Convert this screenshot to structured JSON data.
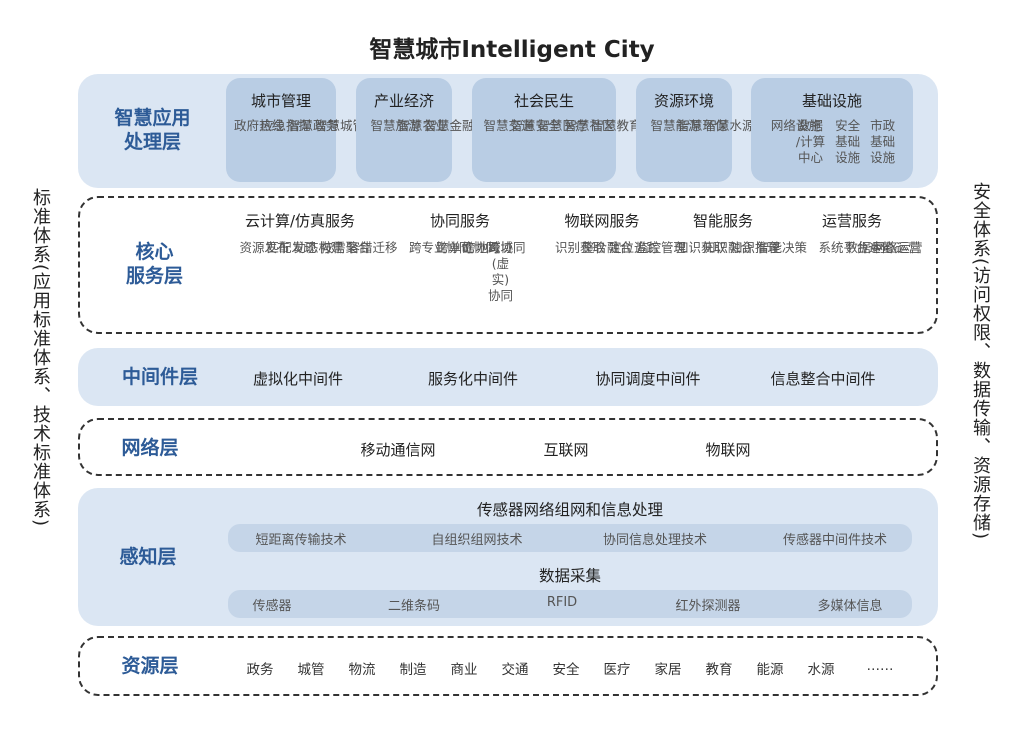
{
  "title": "智慧城市Intelligent City",
  "left_side": "标准体系(应用标准体系、技术标准体系)",
  "right_side": "安全体系(访问权限、数据传输、资源存储)",
  "app_layer": {
    "name": "智慧应用\n处理层",
    "boxes": [
      {
        "title": "城市管理",
        "cols": [
          "政府热线",
          "应急指挥",
          "智慧政务",
          "智慧城管"
        ]
      },
      {
        "title": "产业经济",
        "cols": [
          "智慧旅游",
          "智慧农业",
          "智慧金融"
        ]
      },
      {
        "title": "社会民生",
        "cols": [
          "智慧交通",
          "智慧安全",
          "智慧医疗",
          "智慧社区",
          "智慧教育"
        ]
      },
      {
        "title": "资源环境",
        "cols": [
          "智慧能源",
          "智慧环保",
          "智慧水源"
        ]
      },
      {
        "title": "基础设施",
        "cols": [
          "网络设施",
          "数据\n/计算\n中心",
          "安全\n基础\n设施",
          "市政\n基础\n设施"
        ]
      }
    ]
  },
  "core_layer": {
    "name": "核心\n服务层",
    "groups": [
      {
        "title": "云计算/仿真服务",
        "cols": [
          "资源发布",
          "匹配发现",
          "动态构建",
          "按需聚合",
          "容错迁移"
        ]
      },
      {
        "title": "协同服务",
        "cols": [
          "跨专业协同",
          "跨单位协同",
          "跨地域协同",
          "跨域\n(虚\n实)\n协同"
        ]
      },
      {
        "title": "物联网服务",
        "cols": [
          "识别获取",
          "整合融合",
          "定位追踪",
          "监控管理"
        ]
      },
      {
        "title": "智能服务",
        "cols": [
          "知识获取",
          "知识融合",
          "知识推理",
          "智能决策"
        ]
      },
      {
        "title": "运营服务",
        "cols": [
          "系统平台运营",
          "数据中心运营",
          "网络运营"
        ]
      }
    ]
  },
  "middleware_layer": {
    "name": "中间件层",
    "items": [
      "虚拟化中间件",
      "服务化中间件",
      "协同调度中间件",
      "信息整合中间件"
    ]
  },
  "network_layer": {
    "name": "网络层",
    "items": [
      "移动通信网",
      "互联网",
      "物联网"
    ]
  },
  "perception_layer": {
    "name": "感知层",
    "sub1_title": "传感器网络组网和信息处理",
    "sub1_items": [
      "短距离传输技术",
      "自组织组网技术",
      "协同信息处理技术",
      "传感器中间件技术"
    ],
    "sub2_title": "数据采集",
    "sub2_items": [
      "传感器",
      "二维条码",
      "RFID",
      "红外探测器",
      "多媒体信息"
    ]
  },
  "resource_layer": {
    "name": "资源层",
    "items": [
      "政务",
      "城管",
      "物流",
      "制造",
      "商业",
      "交通",
      "安全",
      "医疗",
      "家居",
      "教育",
      "能源",
      "水源",
      "……"
    ]
  }
}
